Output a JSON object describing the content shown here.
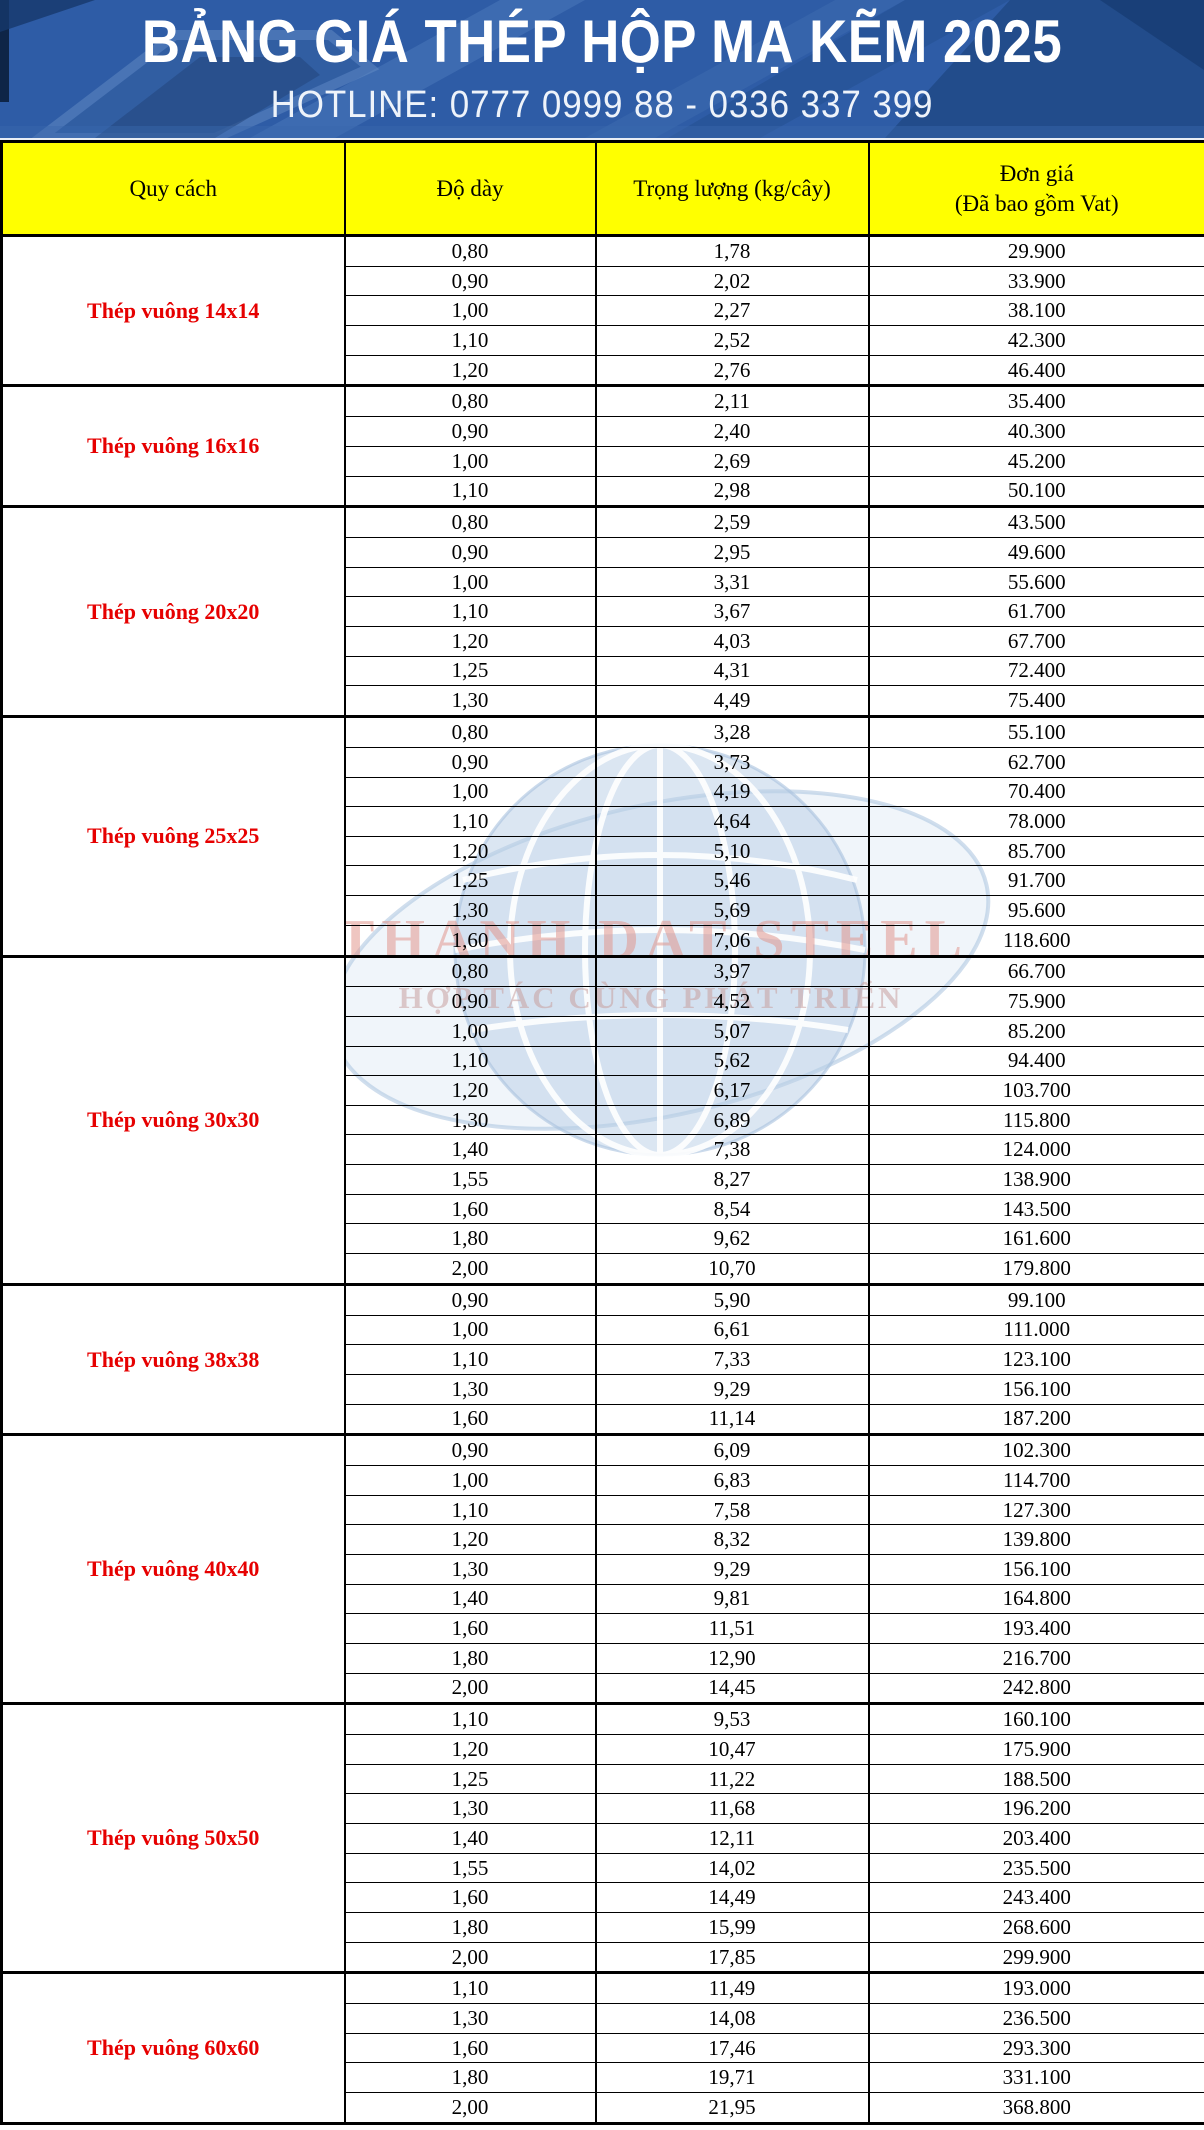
{
  "banner": {
    "title": "BẢNG GIÁ THÉP HỘP MẠ KẼM 2025",
    "hotline": "HOTLINE: 0777 0999 88 - 0336 337 399"
  },
  "watermark": {
    "line1": "THANH DAT STEEL",
    "line2": "HỢP TÁC CÙNG PHÁT TRIỂN"
  },
  "colors": {
    "banner_blue": "#2e5ca6",
    "banner_dark_blue": "#1f4884",
    "header_yellow": "#ffff00",
    "label_red": "#e60000",
    "border_black": "#000000",
    "watermark_blue": "#bcd0e7",
    "watermark_pink": "#e2988f"
  },
  "table": {
    "headers": {
      "spec": "Quy cách",
      "thickness": "Độ dày",
      "weight": "Trọng lượng (kg/cây)",
      "price_line1": "Đơn giá",
      "price_line2": "(Đã bao gồm Vat)"
    },
    "groups": [
      {
        "label": "Thép vuông 14x14",
        "rows": [
          [
            "0,80",
            "1,78",
            "29.900"
          ],
          [
            "0,90",
            "2,02",
            "33.900"
          ],
          [
            "1,00",
            "2,27",
            "38.100"
          ],
          [
            "1,10",
            "2,52",
            "42.300"
          ],
          [
            "1,20",
            "2,76",
            "46.400"
          ]
        ]
      },
      {
        "label": "Thép vuông 16x16",
        "rows": [
          [
            "0,80",
            "2,11",
            "35.400"
          ],
          [
            "0,90",
            "2,40",
            "40.300"
          ],
          [
            "1,00",
            "2,69",
            "45.200"
          ],
          [
            "1,10",
            "2,98",
            "50.100"
          ]
        ]
      },
      {
        "label": "Thép vuông 20x20",
        "rows": [
          [
            "0,80",
            "2,59",
            "43.500"
          ],
          [
            "0,90",
            "2,95",
            "49.600"
          ],
          [
            "1,00",
            "3,31",
            "55.600"
          ],
          [
            "1,10",
            "3,67",
            "61.700"
          ],
          [
            "1,20",
            "4,03",
            "67.700"
          ],
          [
            "1,25",
            "4,31",
            "72.400"
          ],
          [
            "1,30",
            "4,49",
            "75.400"
          ]
        ]
      },
      {
        "label": "Thép vuông 25x25",
        "rows": [
          [
            "0,80",
            "3,28",
            "55.100"
          ],
          [
            "0,90",
            "3,73",
            "62.700"
          ],
          [
            "1,00",
            "4,19",
            "70.400"
          ],
          [
            "1,10",
            "4,64",
            "78.000"
          ],
          [
            "1,20",
            "5,10",
            "85.700"
          ],
          [
            "1,25",
            "5,46",
            "91.700"
          ],
          [
            "1,30",
            "5,69",
            "95.600"
          ],
          [
            "1,60",
            "7,06",
            "118.600"
          ]
        ]
      },
      {
        "label": "Thép vuông 30x30",
        "rows": [
          [
            "0,80",
            "3,97",
            "66.700"
          ],
          [
            "0,90",
            "4,52",
            "75.900"
          ],
          [
            "1,00",
            "5,07",
            "85.200"
          ],
          [
            "1,10",
            "5,62",
            "94.400"
          ],
          [
            "1,20",
            "6,17",
            "103.700"
          ],
          [
            "1,30",
            "6,89",
            "115.800"
          ],
          [
            "1,40",
            "7,38",
            "124.000"
          ],
          [
            "1,55",
            "8,27",
            "138.900"
          ],
          [
            "1,60",
            "8,54",
            "143.500"
          ],
          [
            "1,80",
            "9,62",
            "161.600"
          ],
          [
            "2,00",
            "10,70",
            "179.800"
          ]
        ]
      },
      {
        "label": "Thép vuông 38x38",
        "rows": [
          [
            "0,90",
            "5,90",
            "99.100"
          ],
          [
            "1,00",
            "6,61",
            "111.000"
          ],
          [
            "1,10",
            "7,33",
            "123.100"
          ],
          [
            "1,30",
            "9,29",
            "156.100"
          ],
          [
            "1,60",
            "11,14",
            "187.200"
          ]
        ]
      },
      {
        "label": "Thép vuông 40x40",
        "rows": [
          [
            "0,90",
            "6,09",
            "102.300"
          ],
          [
            "1,00",
            "6,83",
            "114.700"
          ],
          [
            "1,10",
            "7,58",
            "127.300"
          ],
          [
            "1,20",
            "8,32",
            "139.800"
          ],
          [
            "1,30",
            "9,29",
            "156.100"
          ],
          [
            "1,40",
            "9,81",
            "164.800"
          ],
          [
            "1,60",
            "11,51",
            "193.400"
          ],
          [
            "1,80",
            "12,90",
            "216.700"
          ],
          [
            "2,00",
            "14,45",
            "242.800"
          ]
        ]
      },
      {
        "label": "Thép vuông 50x50",
        "rows": [
          [
            "1,10",
            "9,53",
            "160.100"
          ],
          [
            "1,20",
            "10,47",
            "175.900"
          ],
          [
            "1,25",
            "11,22",
            "188.500"
          ],
          [
            "1,30",
            "11,68",
            "196.200"
          ],
          [
            "1,40",
            "12,11",
            "203.400"
          ],
          [
            "1,55",
            "14,02",
            "235.500"
          ],
          [
            "1,60",
            "14,49",
            "243.400"
          ],
          [
            "1,80",
            "15,99",
            "268.600"
          ],
          [
            "2,00",
            "17,85",
            "299.900"
          ]
        ]
      },
      {
        "label": "Thép vuông 60x60",
        "rows": [
          [
            "1,10",
            "11,49",
            "193.000"
          ],
          [
            "1,30",
            "14,08",
            "236.500"
          ],
          [
            "1,60",
            "17,46",
            "293.300"
          ],
          [
            "1,80",
            "19,71",
            "331.100"
          ],
          [
            "2,00",
            "21,95",
            "368.800"
          ]
        ]
      }
    ]
  }
}
